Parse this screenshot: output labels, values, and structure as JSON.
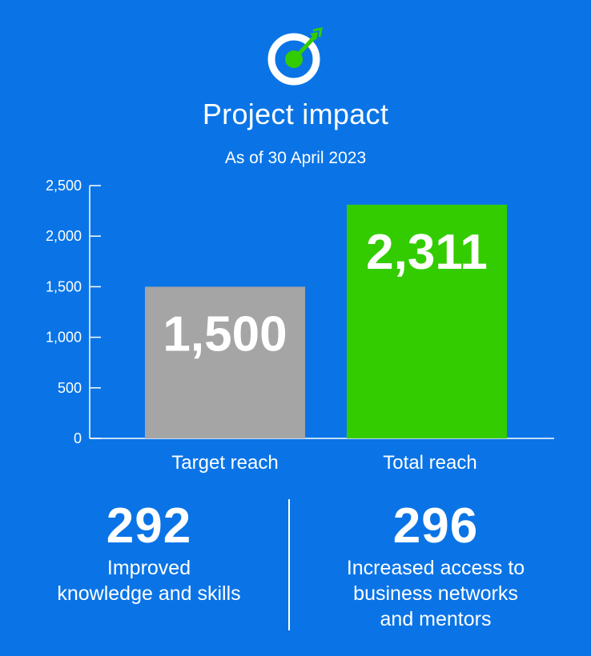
{
  "header": {
    "title": "Project impact",
    "subtitle": "As of 30 April 2023"
  },
  "logo": {
    "icon": "target-icon",
    "accent": "#33cc00"
  },
  "colors": {
    "background": "#0a74e6",
    "target_bar": "#a5a5a5",
    "total_bar": "#33cc00",
    "text": "#ffffff"
  },
  "chart_data": {
    "type": "bar",
    "categories": [
      "Target reach",
      "Total reach"
    ],
    "values": [
      1500,
      2311
    ],
    "data_labels": [
      "1,500",
      "2,311"
    ],
    "bar_colors": [
      "#a5a5a5",
      "#33cc00"
    ],
    "title": "",
    "xlabel": "",
    "ylabel": "",
    "ylim": [
      0,
      2500
    ],
    "yticks": [
      0,
      500,
      1000,
      1500,
      2000,
      2500
    ],
    "ytick_labels": [
      "0",
      "500",
      "1,000",
      "1,500",
      "2,000",
      "2,500"
    ],
    "grid": false,
    "legend": "none"
  },
  "stats": [
    {
      "number": "292",
      "label_lines": [
        "Improved",
        "knowledge and skills"
      ]
    },
    {
      "number": "296",
      "label_lines": [
        "Increased access to",
        "business networks",
        "and mentors"
      ]
    }
  ]
}
